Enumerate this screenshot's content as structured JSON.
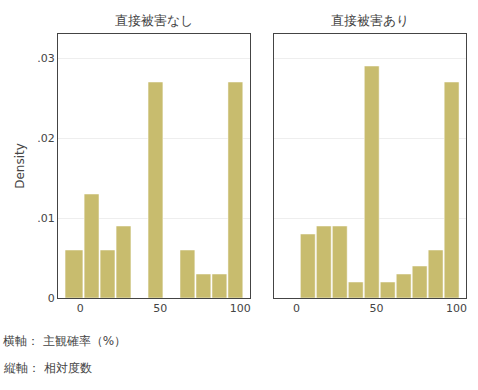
{
  "chart_data": [
    {
      "type": "histogram",
      "title": "直接被害なし",
      "bins": [
        -10,
        2,
        12,
        22,
        32,
        42,
        52,
        62,
        72,
        82,
        92,
        102
      ],
      "values": [
        0.006,
        0.013,
        0.006,
        0.009,
        0.0,
        0.027,
        0.0,
        0.006,
        0.003,
        0.003,
        0.027
      ],
      "color": "#c8bc6e",
      "xlim": [
        -14,
        106
      ],
      "xticks": [
        0,
        50,
        100
      ],
      "ylim": [
        0,
        0.033
      ],
      "yticks": [
        0,
        {
          "value": 0.01,
          "label": ".01"
        },
        {
          "value": 0.02,
          "label": ".02"
        },
        {
          "value": 0.03,
          "label": ".03"
        }
      ],
      "ylabel": "Density",
      "grid": "y",
      "annotations": [
        "横軸： 主観確率（%）",
        "縦軸： 相対度数"
      ]
    },
    {
      "type": "histogram",
      "title": "直接被害あり",
      "bins": [
        -10,
        2,
        12,
        22,
        32,
        42,
        52,
        62,
        72,
        82,
        92,
        102
      ],
      "values": [
        0.0,
        0.008,
        0.009,
        0.009,
        0.002,
        0.029,
        0.002,
        0.003,
        0.004,
        0.006,
        0.027
      ],
      "color": "#c8bc6e",
      "xlim": [
        -14,
        106
      ],
      "xticks": [
        0,
        50,
        100
      ],
      "ylim": [
        0,
        0.033
      ],
      "yticks": [
        0,
        {
          "value": 0.01,
          "label": ".01"
        },
        {
          "value": 0.02,
          "label": ".02"
        },
        {
          "value": 0.03,
          "label": ".03"
        }
      ],
      "grid": "y",
      "tick_labels": "x"
    }
  ]
}
